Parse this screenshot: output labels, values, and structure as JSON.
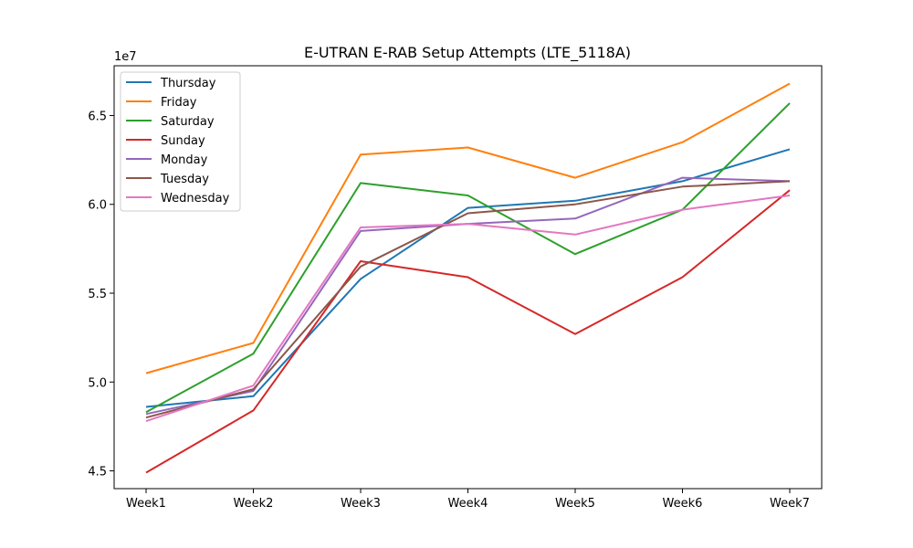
{
  "chart_data": {
    "type": "line",
    "title": "E-UTRAN E-RAB Setup Attempts (LTE_5118A)",
    "xlabel": "",
    "ylabel": "",
    "y_offset_label": "1e7",
    "categories": [
      "Week1",
      "Week2",
      "Week3",
      "Week4",
      "Week5",
      "Week6",
      "Week7"
    ],
    "ylim": [
      4.4,
      6.78
    ],
    "yticks": [
      4.5,
      5.0,
      5.5,
      6.0,
      6.5
    ],
    "ytick_labels": [
      "4.5",
      "5.0",
      "5.5",
      "6.0",
      "6.5"
    ],
    "grid": false,
    "legend_position": "top-left",
    "series": [
      {
        "name": "Thursday",
        "color": "#1f77b4",
        "values": [
          4.86,
          4.92,
          5.58,
          5.98,
          6.02,
          6.13,
          6.31
        ]
      },
      {
        "name": "Friday",
        "color": "#ff7f0e",
        "values": [
          5.05,
          5.22,
          6.28,
          6.32,
          6.15,
          6.35,
          6.68
        ]
      },
      {
        "name": "Saturday",
        "color": "#2ca02c",
        "values": [
          4.83,
          5.16,
          6.12,
          6.05,
          5.72,
          5.97,
          6.57
        ]
      },
      {
        "name": "Sunday",
        "color": "#d62728",
        "values": [
          4.49,
          4.84,
          5.68,
          5.59,
          5.27,
          5.59,
          6.08
        ]
      },
      {
        "name": "Monday",
        "color": "#9467bd",
        "values": [
          4.82,
          4.95,
          5.85,
          5.89,
          5.92,
          6.15,
          6.13
        ]
      },
      {
        "name": "Tuesday",
        "color": "#8c564b",
        "values": [
          4.8,
          4.96,
          5.65,
          5.95,
          6.0,
          6.1,
          6.13
        ]
      },
      {
        "name": "Wednesday",
        "color": "#e377c2",
        "values": [
          4.78,
          4.98,
          5.87,
          5.89,
          5.83,
          5.97,
          6.05
        ]
      }
    ]
  }
}
